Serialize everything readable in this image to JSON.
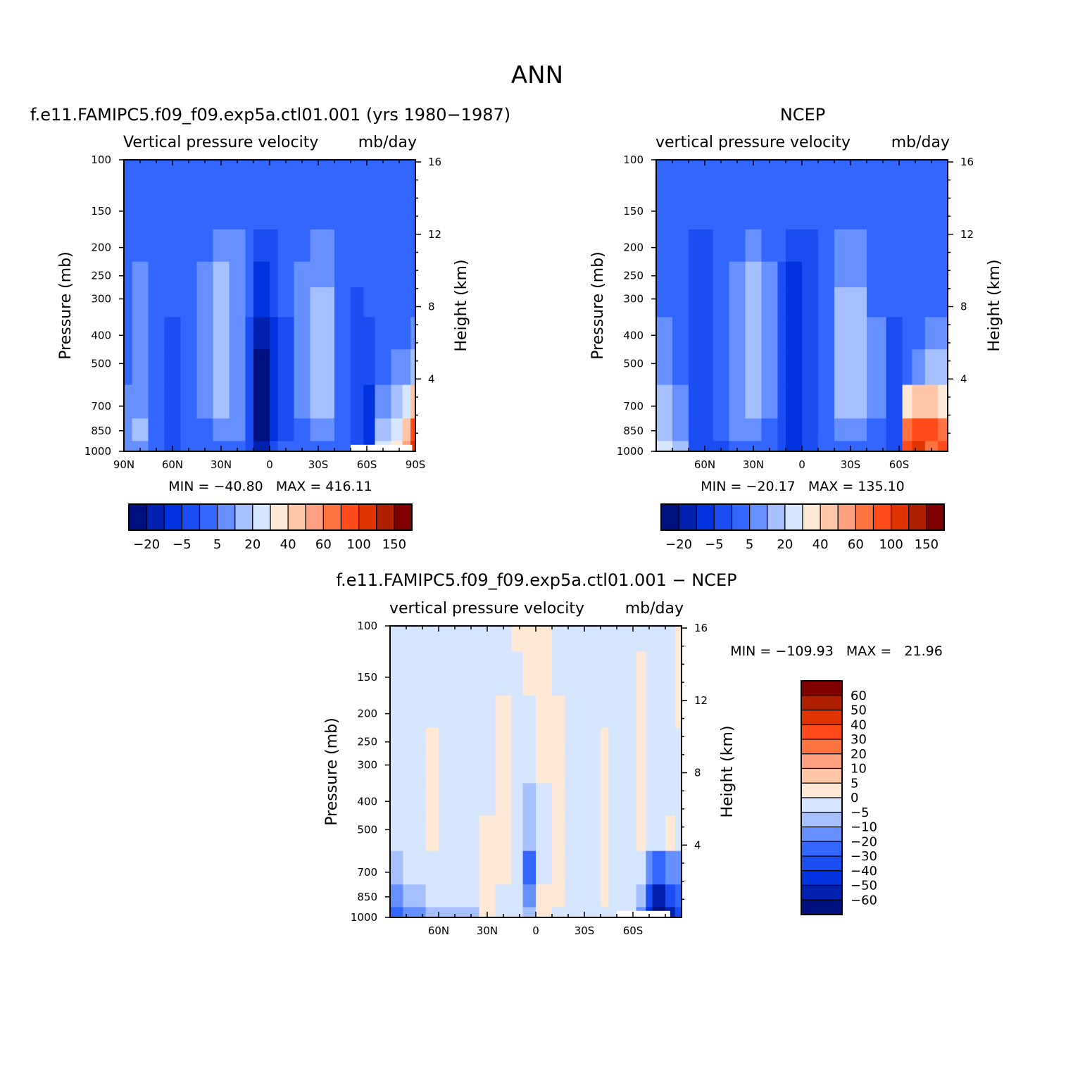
{
  "figure": {
    "title": "ANN"
  },
  "colors": {
    "levels": [
      "#00107f",
      "#0020b0",
      "#0033e0",
      "#1a4df2",
      "#3366ff",
      "#6690ff",
      "#a6c0ff",
      "#d6e6ff",
      "#ffe8d6",
      "#ffc7a8",
      "#ffa080",
      "#ff7340",
      "#ff4a1a",
      "#e03300",
      "#b02000",
      "#800000"
    ],
    "frame": "#000000"
  },
  "chart_data": [
    {
      "type": "heatmap",
      "id": "model",
      "title": "f.e11.FAMIPC5.f09_f09.exp5a.ctl01.001 (yrs 1980-1987)",
      "left_label": "Vertical pressure velocity",
      "right_label": "mb/day",
      "ylabel": "Pressure (mb)",
      "y2label": "Height (km)",
      "xlim": [
        90,
        -90
      ],
      "x_ticks": [
        {
          "v": 90,
          "label": "90N"
        },
        {
          "v": 60,
          "label": "60N"
        },
        {
          "v": 30,
          "label": "30N"
        },
        {
          "v": 0,
          "label": "0"
        },
        {
          "v": -30,
          "label": "30S"
        },
        {
          "v": -60,
          "label": "60S"
        },
        {
          "v": -90,
          "label": "90S"
        }
      ],
      "p_ticks": [
        100,
        150,
        200,
        250,
        300,
        400,
        500,
        700,
        850,
        1000
      ],
      "z_ticks": [
        4,
        8,
        12,
        16
      ],
      "stats": "MIN = -40.80   MAX = 416.11",
      "colorbar_labels": [
        "-20",
        "-5",
        "5",
        "20",
        "40",
        "60",
        "100",
        "150"
      ],
      "bands": [
        {
          "x": [
            90,
            85
          ],
          "levels": [
            4,
            4,
            4,
            4,
            4,
            4,
            4,
            5,
            5,
            5
          ]
        },
        {
          "x": [
            85,
            75
          ],
          "levels": [
            4,
            4,
            4,
            5,
            5,
            5,
            5,
            5,
            6,
            5
          ]
        },
        {
          "x": [
            75,
            65
          ],
          "levels": [
            4,
            4,
            4,
            4,
            4,
            4,
            4,
            4,
            4,
            4
          ]
        },
        {
          "x": [
            65,
            55
          ],
          "levels": [
            4,
            4,
            4,
            4,
            4,
            3,
            3,
            3,
            3,
            3
          ]
        },
        {
          "x": [
            55,
            45
          ],
          "levels": [
            4,
            4,
            4,
            4,
            4,
            4,
            4,
            4,
            4,
            4
          ]
        },
        {
          "x": [
            45,
            35
          ],
          "levels": [
            4,
            4,
            4,
            5,
            5,
            5,
            5,
            5,
            4,
            4
          ]
        },
        {
          "x": [
            35,
            25
          ],
          "levels": [
            4,
            4,
            5,
            6,
            6,
            6,
            6,
            6,
            5,
            4
          ]
        },
        {
          "x": [
            25,
            15
          ],
          "levels": [
            4,
            4,
            5,
            5,
            5,
            5,
            5,
            5,
            5,
            4
          ]
        },
        {
          "x": [
            15,
            10
          ],
          "levels": [
            4,
            4,
            4,
            4,
            4,
            3,
            3,
            3,
            3,
            3
          ]
        },
        {
          "x": [
            10,
            0
          ],
          "levels": [
            4,
            4,
            3,
            2,
            2,
            1,
            0,
            0,
            0,
            1
          ]
        },
        {
          "x": [
            0,
            -5
          ],
          "levels": [
            4,
            4,
            3,
            3,
            3,
            2,
            2,
            2,
            2,
            3
          ]
        },
        {
          "x": [
            -5,
            -15
          ],
          "levels": [
            4,
            4,
            4,
            4,
            4,
            3,
            3,
            3,
            3,
            4
          ]
        },
        {
          "x": [
            -15,
            -25
          ],
          "levels": [
            4,
            4,
            4,
            5,
            5,
            5,
            5,
            5,
            4,
            4
          ]
        },
        {
          "x": [
            -25,
            -40
          ],
          "levels": [
            4,
            4,
            5,
            5,
            6,
            6,
            6,
            6,
            5,
            4
          ]
        },
        {
          "x": [
            -40,
            -50
          ],
          "levels": [
            4,
            4,
            4,
            4,
            4,
            4,
            4,
            4,
            4,
            4
          ]
        },
        {
          "x": [
            -50,
            -58
          ],
          "levels": [
            4,
            4,
            4,
            4,
            3,
            3,
            3,
            3,
            3,
            3
          ]
        },
        {
          "x": [
            -58,
            -65
          ],
          "levels": [
            4,
            4,
            4,
            4,
            4,
            3,
            3,
            2,
            2,
            2
          ]
        },
        {
          "x": [
            -65,
            -75
          ],
          "levels": [
            4,
            4,
            4,
            4,
            4,
            4,
            4,
            5,
            6,
            7
          ]
        },
        {
          "x": [
            -75,
            -82
          ],
          "levels": [
            4,
            4,
            4,
            4,
            4,
            4,
            5,
            6,
            7,
            8
          ]
        },
        {
          "x": [
            -82,
            -87
          ],
          "levels": [
            4,
            4,
            4,
            4,
            4,
            4,
            5,
            7,
            9,
            10
          ]
        },
        {
          "x": [
            -87,
            -90
          ],
          "levels": [
            4,
            4,
            4,
            4,
            4,
            5,
            6,
            9,
            12,
            13
          ]
        }
      ],
      "missing": {
        "x": [
          -50,
          -88
        ],
        "p": [
          950,
          1000
        ]
      }
    },
    {
      "type": "heatmap",
      "id": "ncep",
      "title": "NCEP",
      "left_label": "vertical pressure velocity",
      "right_label": "mb/day",
      "ylabel": "Pressure (mb)",
      "y2label": "Height (km)",
      "xlim": [
        90,
        -90
      ],
      "x_ticks": [
        {
          "v": 60,
          "label": "60N"
        },
        {
          "v": 30,
          "label": "30N"
        },
        {
          "v": 0,
          "label": "0"
        },
        {
          "v": -30,
          "label": "30S"
        },
        {
          "v": -60,
          "label": "60S"
        }
      ],
      "p_ticks": [
        100,
        150,
        200,
        250,
        300,
        400,
        500,
        700,
        850,
        1000
      ],
      "z_ticks": [
        4,
        8,
        12,
        16
      ],
      "stats": "MIN = -20.17   MAX = 135.10",
      "colorbar_labels": [
        "-20",
        "-5",
        "5",
        "20",
        "40",
        "60",
        "100",
        "150"
      ],
      "bands": [
        {
          "x": [
            90,
            80
          ],
          "levels": [
            4,
            4,
            4,
            4,
            4,
            5,
            5,
            6,
            6,
            7
          ]
        },
        {
          "x": [
            80,
            70
          ],
          "levels": [
            4,
            4,
            4,
            4,
            4,
            4,
            4,
            5,
            5,
            6
          ]
        },
        {
          "x": [
            70,
            55
          ],
          "levels": [
            4,
            4,
            3,
            3,
            3,
            3,
            3,
            3,
            3,
            3
          ]
        },
        {
          "x": [
            55,
            45
          ],
          "levels": [
            4,
            4,
            4,
            4,
            4,
            4,
            4,
            4,
            4,
            3
          ]
        },
        {
          "x": [
            45,
            35
          ],
          "levels": [
            4,
            4,
            4,
            5,
            5,
            5,
            5,
            5,
            5,
            4
          ]
        },
        {
          "x": [
            35,
            25
          ],
          "levels": [
            4,
            4,
            5,
            6,
            6,
            6,
            6,
            6,
            5,
            4
          ]
        },
        {
          "x": [
            25,
            15
          ],
          "levels": [
            4,
            4,
            4,
            5,
            5,
            5,
            5,
            5,
            4,
            4
          ]
        },
        {
          "x": [
            15,
            10
          ],
          "levels": [
            4,
            4,
            4,
            3,
            3,
            3,
            3,
            3,
            3,
            3
          ]
        },
        {
          "x": [
            10,
            0
          ],
          "levels": [
            4,
            4,
            3,
            2,
            2,
            2,
            2,
            2,
            2,
            2
          ]
        },
        {
          "x": [
            0,
            -10
          ],
          "levels": [
            4,
            4,
            3,
            3,
            3,
            3,
            3,
            3,
            3,
            3
          ]
        },
        {
          "x": [
            -10,
            -20
          ],
          "levels": [
            4,
            4,
            4,
            4,
            4,
            4,
            4,
            4,
            4,
            4
          ]
        },
        {
          "x": [
            -20,
            -40
          ],
          "levels": [
            4,
            4,
            5,
            5,
            6,
            6,
            6,
            6,
            5,
            4
          ]
        },
        {
          "x": [
            -40,
            -52
          ],
          "levels": [
            4,
            4,
            4,
            4,
            4,
            5,
            5,
            5,
            4,
            4
          ]
        },
        {
          "x": [
            -52,
            -62
          ],
          "levels": [
            4,
            4,
            4,
            4,
            4,
            3,
            3,
            3,
            3,
            3
          ]
        },
        {
          "x": [
            -62,
            -68
          ],
          "levels": [
            4,
            4,
            4,
            4,
            4,
            4,
            4,
            8,
            11,
            12
          ]
        },
        {
          "x": [
            -68,
            -76
          ],
          "levels": [
            4,
            4,
            4,
            4,
            4,
            4,
            5,
            9,
            12,
            13
          ]
        },
        {
          "x": [
            -76,
            -84
          ],
          "levels": [
            4,
            4,
            4,
            4,
            4,
            5,
            6,
            9,
            12,
            11
          ]
        },
        {
          "x": [
            -84,
            -90
          ],
          "levels": [
            4,
            4,
            4,
            4,
            4,
            5,
            6,
            8,
            11,
            12
          ]
        }
      ],
      "missing": null
    },
    {
      "type": "heatmap",
      "id": "diff",
      "title": "f.e11.FAMIPC5.f09_f09.exp5a.ctl01.001 - NCEP",
      "left_label": "vertical pressure velocity",
      "right_label": "mb/day",
      "ylabel": "Pressure (mb)",
      "y2label": "Height (km)",
      "xlim": [
        90,
        -90
      ],
      "x_ticks": [
        {
          "v": 60,
          "label": "60N"
        },
        {
          "v": 30,
          "label": "30N"
        },
        {
          "v": 0,
          "label": "0"
        },
        {
          "v": -30,
          "label": "30S"
        },
        {
          "v": -60,
          "label": "60S"
        }
      ],
      "p_ticks": [
        100,
        150,
        200,
        250,
        300,
        400,
        500,
        700,
        850,
        1000
      ],
      "z_ticks": [
        4,
        8,
        12,
        16
      ],
      "stats": "MIN = -109.93   MAX =   21.96",
      "colorbar_labels": [
        "60",
        "50",
        "40",
        "30",
        "20",
        "10",
        "5",
        "0",
        "-5",
        "-10",
        "-20",
        "-30",
        "-40",
        "-50",
        "-60"
      ],
      "bands": [
        {
          "x": [
            90,
            82
          ],
          "levels": [
            7,
            7,
            7,
            7,
            7,
            7,
            7,
            6,
            5,
            4
          ]
        },
        {
          "x": [
            82,
            68
          ],
          "levels": [
            7,
            7,
            7,
            7,
            7,
            7,
            7,
            7,
            6,
            5
          ]
        },
        {
          "x": [
            68,
            60
          ],
          "levels": [
            7,
            7,
            7,
            8,
            8,
            8,
            8,
            7,
            7,
            6
          ]
        },
        {
          "x": [
            60,
            35
          ],
          "levels": [
            7,
            7,
            7,
            7,
            7,
            7,
            7,
            7,
            7,
            6
          ]
        },
        {
          "x": [
            35,
            25
          ],
          "levels": [
            7,
            7,
            7,
            7,
            7,
            7,
            8,
            8,
            8,
            8
          ]
        },
        {
          "x": [
            25,
            15
          ],
          "levels": [
            7,
            7,
            8,
            8,
            8,
            8,
            8,
            8,
            7,
            7
          ]
        },
        {
          "x": [
            15,
            8
          ],
          "levels": [
            8,
            7,
            7,
            7,
            7,
            7,
            7,
            7,
            7,
            7
          ]
        },
        {
          "x": [
            8,
            0
          ],
          "levels": [
            8,
            8,
            7,
            7,
            7,
            6,
            6,
            4,
            5,
            6
          ]
        },
        {
          "x": [
            0,
            -10
          ],
          "levels": [
            8,
            8,
            8,
            8,
            8,
            7,
            7,
            7,
            8,
            8
          ]
        },
        {
          "x": [
            -10,
            -18
          ],
          "levels": [
            7,
            7,
            8,
            8,
            8,
            8,
            8,
            8,
            8,
            7
          ]
        },
        {
          "x": [
            -18,
            -40
          ],
          "levels": [
            7,
            7,
            7,
            7,
            7,
            7,
            7,
            7,
            7,
            7
          ]
        },
        {
          "x": [
            -40,
            -45
          ],
          "levels": [
            7,
            7,
            7,
            8,
            8,
            8,
            8,
            8,
            8,
            7
          ]
        },
        {
          "x": [
            -45,
            -62
          ],
          "levels": [
            7,
            7,
            7,
            7,
            7,
            7,
            7,
            7,
            7,
            7
          ]
        },
        {
          "x": [
            -62,
            -68
          ],
          "levels": [
            7,
            8,
            8,
            8,
            8,
            8,
            8,
            7,
            6,
            5
          ]
        },
        {
          "x": [
            -68,
            -72
          ],
          "levels": [
            7,
            7,
            7,
            7,
            7,
            7,
            7,
            5,
            3,
            2
          ]
        },
        {
          "x": [
            -72,
            -80
          ],
          "levels": [
            7,
            7,
            7,
            7,
            7,
            7,
            7,
            4,
            1,
            0
          ]
        },
        {
          "x": [
            -80,
            -86
          ],
          "levels": [
            7,
            7,
            7,
            7,
            7,
            7,
            8,
            5,
            3,
            1
          ]
        },
        {
          "x": [
            -86,
            -90
          ],
          "levels": [
            8,
            8,
            8,
            7,
            7,
            7,
            7,
            5,
            4,
            3
          ]
        }
      ],
      "missing": {
        "x": [
          -50,
          -83
        ],
        "p": [
          950,
          1000
        ]
      }
    }
  ]
}
